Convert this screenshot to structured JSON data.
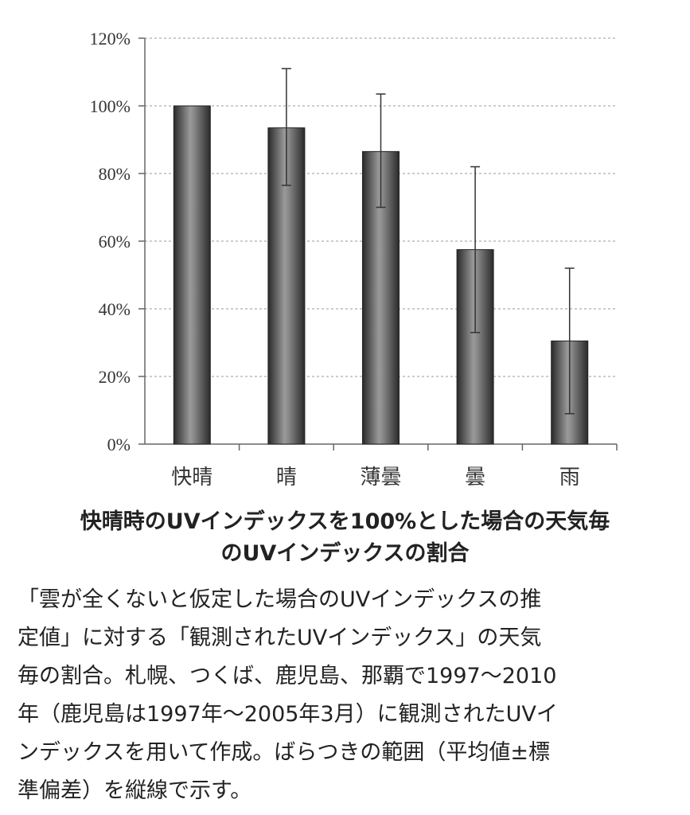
{
  "chart_data": {
    "type": "bar",
    "categories": [
      "快晴",
      "晴",
      "薄曇",
      "曇",
      "雨"
    ],
    "values": [
      100,
      93.5,
      86.5,
      57.5,
      30.5
    ],
    "error_upper": [
      100,
      111,
      103.5,
      82,
      52
    ],
    "error_lower": [
      100,
      76.5,
      70,
      33,
      9
    ],
    "y_ticks": [
      "0%",
      "20%",
      "40%",
      "60%",
      "80%",
      "100%",
      "120%"
    ],
    "ylim": [
      0,
      120
    ],
    "grid": true,
    "bar_color": "#4a4a4a"
  },
  "caption": {
    "title_lines": [
      "快晴時のUVインデックスを100%とした場合の天気毎",
      "のUVインデックスの割合"
    ],
    "body_lines": [
      "「雲が全くないと仮定した場合のUVインデックスの推",
      "定値」に対する「観測されたUVインデックス」の天気",
      "毎の割合。札幌、つくば、鹿児島、那覇で1997～2010",
      "年（鹿児島は1997年～2005年3月）に観測されたUVイ",
      "ンデックスを用いて作成。ばらつきの範囲（平均値±標",
      "準偏差）を縦線で示す。"
    ]
  }
}
